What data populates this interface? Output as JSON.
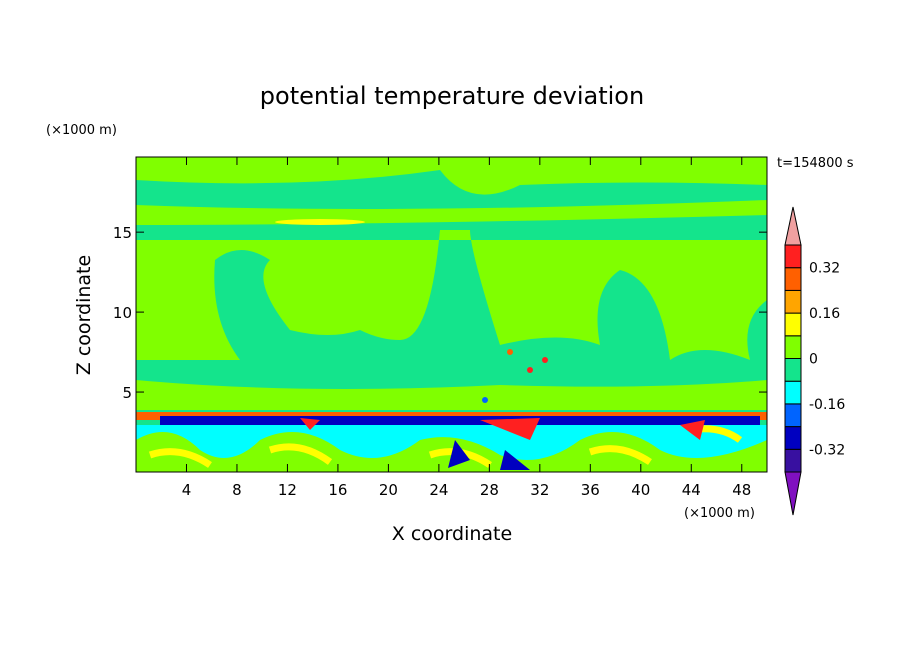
{
  "chart_data": {
    "type": "contour",
    "title": "potential temperature deviation",
    "x_label": "X coordinate",
    "y_label": "Z coordinate",
    "x_unit": "(×1000 m)",
    "y_unit": "(×1000 m)",
    "time_label": "t=154800 s",
    "xlim": [
      0,
      50
    ],
    "xticks": [
      4,
      8,
      12,
      16,
      20,
      24,
      28,
      32,
      36,
      40,
      44,
      48
    ],
    "ylim": [
      0,
      19.7
    ],
    "yticks": [
      5,
      10,
      15
    ],
    "colorbar": {
      "levels": [
        -0.4,
        -0.32,
        -0.24,
        -0.16,
        -0.08,
        0,
        0.08,
        0.16,
        0.24,
        0.32,
        0.4
      ],
      "ticks": [
        -0.32,
        -0.16,
        0,
        0.16,
        0.32
      ],
      "colors": [
        "#8010c0",
        "#3810a0",
        "#0000c0",
        "#0064ff",
        "#00ffff",
        "#14e48c",
        "#80ff00",
        "#ffff00",
        "#ffa500",
        "#ff6000",
        "#ff2020",
        "#f0a0a0"
      ]
    }
  }
}
